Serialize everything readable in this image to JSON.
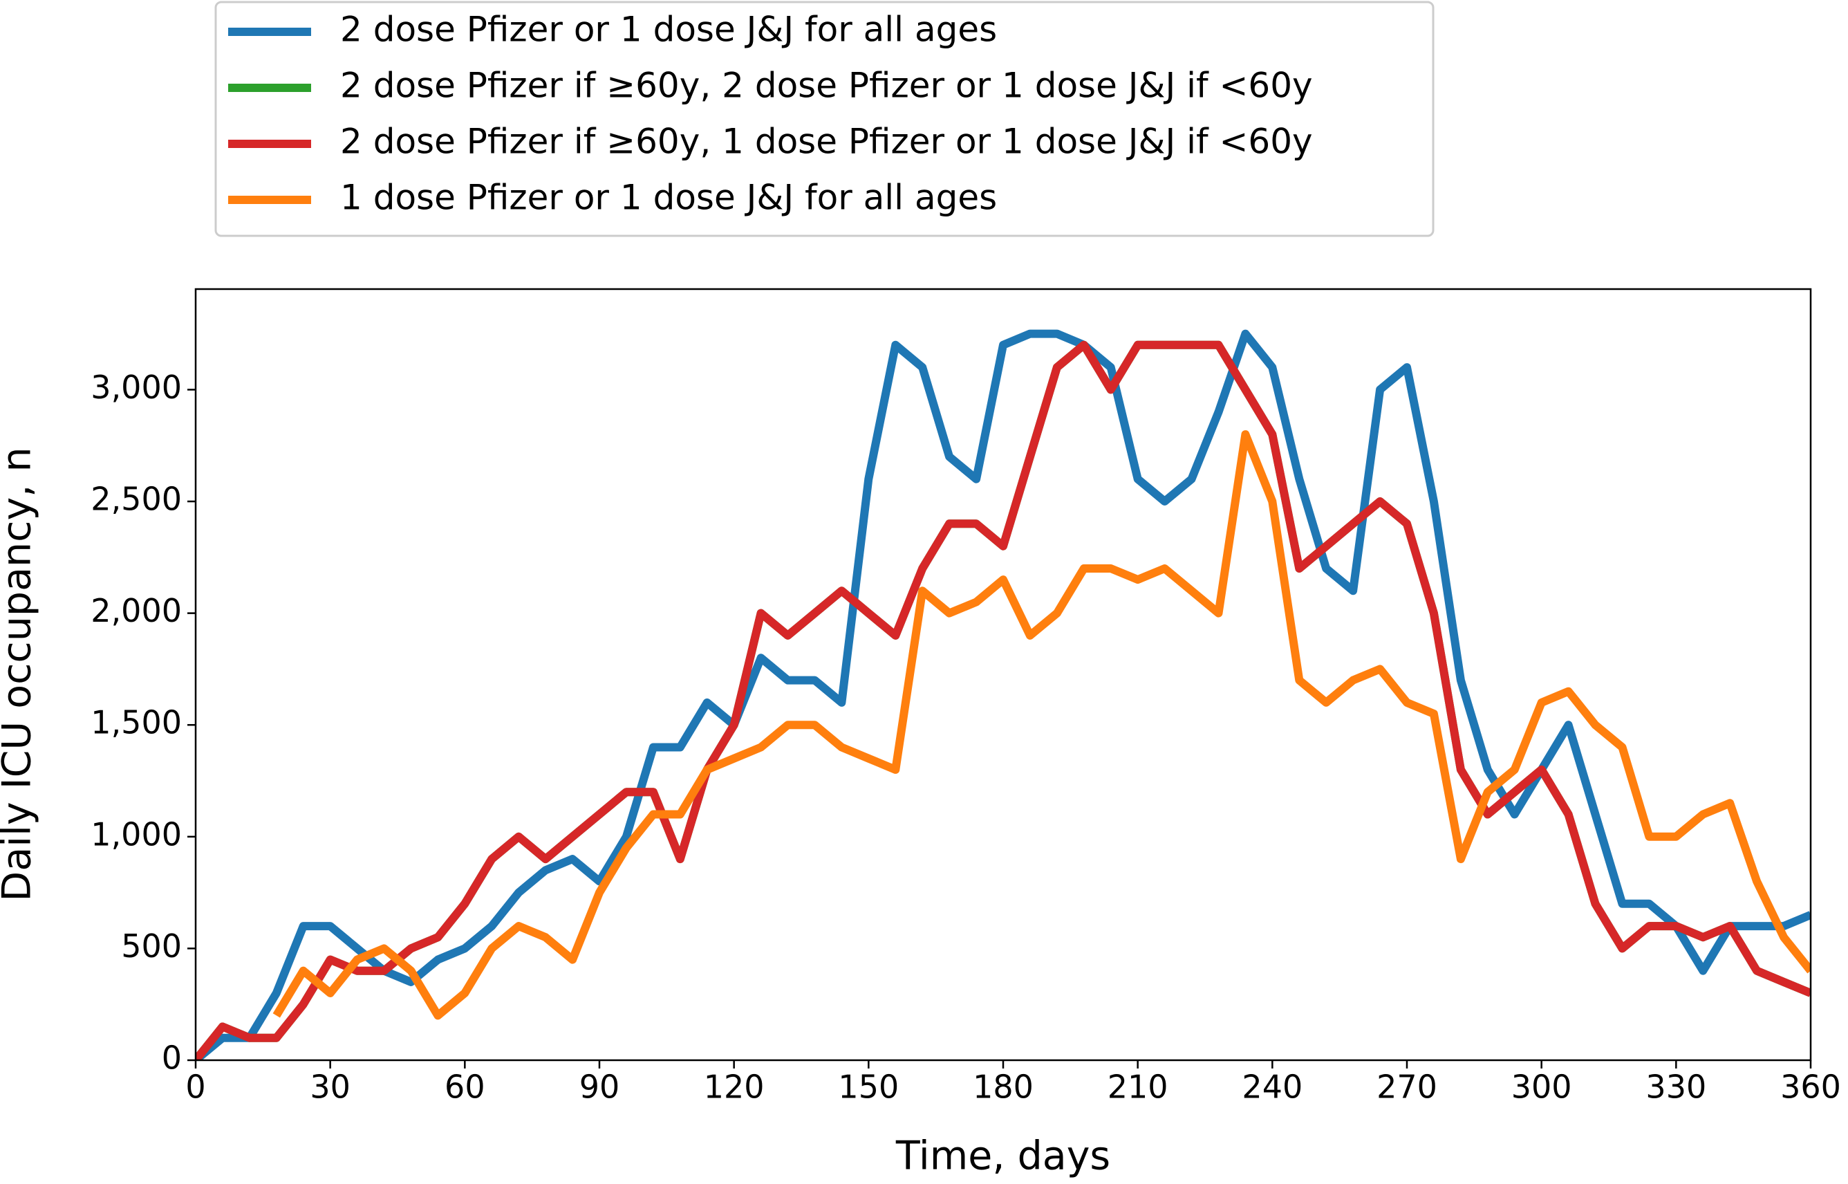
{
  "chart_data": {
    "type": "line",
    "xlabel": "Time, days",
    "ylabel": "Daily ICU occupancy, n",
    "x": [
      0,
      6,
      12,
      18,
      24,
      30,
      36,
      42,
      48,
      54,
      60,
      66,
      72,
      78,
      84,
      90,
      96,
      102,
      108,
      114,
      120,
      126,
      132,
      138,
      144,
      150,
      156,
      162,
      168,
      174,
      180,
      186,
      192,
      198,
      204,
      210,
      216,
      222,
      228,
      234,
      240,
      246,
      252,
      258,
      264,
      270,
      276,
      282,
      288,
      294,
      300,
      306,
      312,
      318,
      324,
      330,
      336,
      342,
      348,
      354,
      360
    ],
    "series": [
      {
        "name": "2 dose Pfizer or 1 dose J&J for all ages",
        "color": "#1f77b4",
        "values": [
          0,
          100,
          100,
          300,
          600,
          600,
          500,
          400,
          350,
          450,
          500,
          600,
          750,
          850,
          900,
          800,
          1000,
          1400,
          1400,
          1600,
          1500,
          1800,
          1700,
          1700,
          1600,
          2600,
          3200,
          3100,
          2700,
          2600,
          3200,
          3250,
          3250,
          3200,
          3100,
          2600,
          2500,
          2600,
          2900,
          3250,
          3100,
          2600,
          2200,
          2100,
          3000,
          3100,
          2500,
          1700,
          1300,
          1100,
          1300,
          1500,
          1100,
          700,
          700,
          600,
          400,
          600,
          600,
          600,
          650
        ]
      },
      {
        "name": "2 dose Pfizer if ≥60y, 2 dose Pfizer or 1 dose J&J if <60y",
        "color": "#2ca02c",
        "values": [
          0,
          150,
          100,
          100,
          250,
          450,
          400,
          400,
          500,
          550,
          700,
          900,
          1000,
          900,
          1000,
          1100,
          1200,
          1200,
          900,
          1300,
          1500,
          2000,
          1900,
          2000,
          2100,
          2000,
          1900,
          2200,
          2400,
          2400,
          2300,
          2700,
          3100,
          3200,
          3000,
          3200,
          3200,
          3200,
          3200,
          3000,
          2800,
          2200,
          2300,
          2400,
          2500,
          2400,
          2000,
          1300,
          1100,
          1200,
          1300,
          1100,
          700,
          500,
          600,
          600,
          550,
          600,
          400,
          350,
          300
        ]
      },
      {
        "name": "2 dose Pfizer if ≥60y, 1 dose Pfizer or 1 dose J&J if <60y",
        "color": "#d62728",
        "values": [
          0,
          150,
          100,
          100,
          250,
          450,
          400,
          400,
          500,
          550,
          700,
          900,
          1000,
          900,
          1000,
          1100,
          1200,
          1200,
          900,
          1300,
          1500,
          2000,
          1900,
          2000,
          2100,
          2000,
          1900,
          2200,
          2400,
          2400,
          2300,
          2700,
          3100,
          3200,
          3000,
          3200,
          3200,
          3200,
          3200,
          3000,
          2800,
          2200,
          2300,
          2400,
          2500,
          2400,
          2000,
          1300,
          1100,
          1200,
          1300,
          1100,
          700,
          500,
          600,
          600,
          550,
          600,
          400,
          350,
          300
        ]
      },
      {
        "name": "1 dose Pfizer or 1 dose J&J for all ages",
        "color": "#ff7f0e",
        "values": [
          null,
          null,
          null,
          200,
          400,
          300,
          450,
          500,
          400,
          200,
          300,
          500,
          600,
          550,
          450,
          750,
          950,
          1100,
          1100,
          1300,
          1350,
          1400,
          1500,
          1500,
          1400,
          1350,
          1300,
          2100,
          2000,
          2050,
          2150,
          1900,
          2000,
          2200,
          2200,
          2150,
          2200,
          2100,
          2000,
          2800,
          2500,
          1700,
          1600,
          1700,
          1750,
          1600,
          1550,
          900,
          1200,
          1300,
          1600,
          1650,
          1500,
          1400,
          1000,
          1000,
          1100,
          1150,
          800,
          550,
          400
        ]
      }
    ],
    "xlim": [
      0,
      360
    ],
    "xticks": [
      0,
      30,
      60,
      90,
      120,
      150,
      180,
      210,
      240,
      270,
      300,
      330,
      360
    ],
    "ylim": [
      0,
      3450
    ],
    "yticks": [
      0,
      {
        "value": 500,
        "label": "500"
      },
      {
        "value": 1000,
        "label": "1,000"
      },
      {
        "value": 1500,
        "label": "1,500"
      },
      {
        "value": 2000,
        "label": "2,000"
      },
      {
        "value": 2500,
        "label": "2,500"
      },
      {
        "value": 3000,
        "label": "3,000"
      }
    ]
  }
}
